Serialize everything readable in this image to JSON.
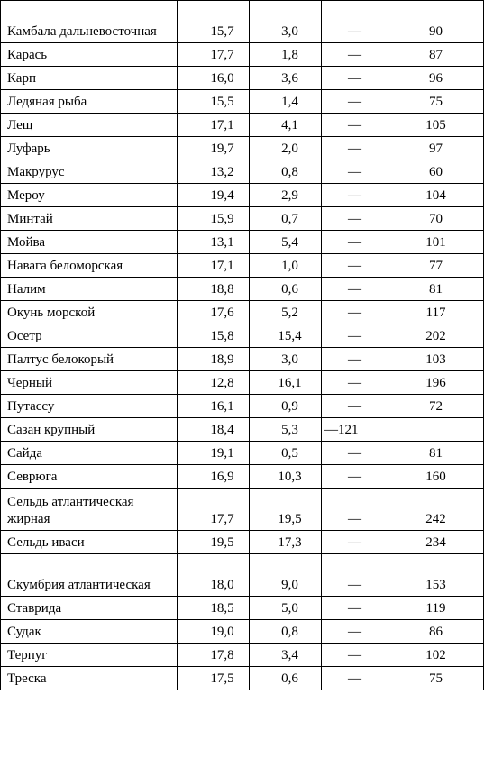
{
  "table": {
    "rows": [
      {
        "name": "Камбала дальневосточная",
        "protein": "15,7",
        "fat": "3,0",
        "carbs": "—",
        "kcal": "90",
        "tall": true
      },
      {
        "name": "Карась",
        "protein": "17,7",
        "fat": "1,8",
        "carbs": "—",
        "kcal": "87"
      },
      {
        "name": "Карп",
        "protein": "16,0",
        "fat": "3,6",
        "carbs": "—",
        "kcal": "96"
      },
      {
        "name": "Ледяная рыба",
        "protein": "15,5",
        "fat": "1,4",
        "carbs": "—",
        "kcal": "75"
      },
      {
        "name": "Лещ",
        "protein": "17,1",
        "fat": "4,1",
        "carbs": "—",
        "kcal": "105"
      },
      {
        "name": "Луфарь",
        "protein": "19,7",
        "fat": "2,0",
        "carbs": "—",
        "kcal": "97"
      },
      {
        "name": "Макрурус",
        "protein": "13,2",
        "fat": "0,8",
        "carbs": "—",
        "kcal": "60"
      },
      {
        "name": "Мероу",
        "protein": "19,4",
        "fat": "2,9",
        "carbs": "—",
        "kcal": "104"
      },
      {
        "name": "Минтай",
        "protein": "15,9",
        "fat": "0,7",
        "carbs": "—",
        "kcal": "70"
      },
      {
        "name": "Мойва",
        "protein": "13,1",
        "fat": "5,4",
        "carbs": "—",
        "kcal": "101"
      },
      {
        "name": "Навага беломорская",
        "protein": "17,1",
        "fat": "1,0",
        "carbs": "—",
        "kcal": "77"
      },
      {
        "name": "Налим",
        "protein": "18,8",
        "fat": "0,6",
        "carbs": "—",
        "kcal": "81"
      },
      {
        "name": "Окунь морской",
        "protein": "17,6",
        "fat": "5,2",
        "carbs": "—",
        "kcal": "117"
      },
      {
        "name": "Осетр",
        "protein": "15,8",
        "fat": "15,4",
        "carbs": "—",
        "kcal": "202"
      },
      {
        "name": "Палтус белокорый",
        "protein": "18,9",
        "fat": "3,0",
        "carbs": "—",
        "kcal": "103"
      },
      {
        "name": "Черный",
        "protein": "12,8",
        "fat": "16,1",
        "carbs": "—",
        "kcal": "196"
      },
      {
        "name": "Путассу",
        "protein": "16,1",
        "fat": "0,9",
        "carbs": "—",
        "kcal": "72"
      },
      {
        "name": "Сазан крупный",
        "protein": "18,4",
        "fat": "5,3",
        "carbs": "—121",
        "kcal": "",
        "shifted": true
      },
      {
        "name": "Сайда",
        "protein": "19,1",
        "fat": "0,5",
        "carbs": "—",
        "kcal": "81"
      },
      {
        "name": "Севрюга",
        "protein": "16,9",
        "fat": "10,3",
        "carbs": "—",
        "kcal": "160"
      },
      {
        "name": "Сельдь атлантическая жирная",
        "protein": "17,7",
        "fat": "19,5",
        "carbs": "—",
        "kcal": "242",
        "tall": true
      },
      {
        "name": "Сельдь иваси",
        "protein": "19,5",
        "fat": "17,3",
        "carbs": "—",
        "kcal": "234"
      },
      {
        "name": "Скумбрия атлантическая",
        "protein": "18,0",
        "fat": "9,0",
        "carbs": "—",
        "kcal": "153",
        "tall": true
      },
      {
        "name": "Ставрида",
        "protein": "18,5",
        "fat": "5,0",
        "carbs": "—",
        "kcal": "119"
      },
      {
        "name": "Судак",
        "protein": "19,0",
        "fat": "0,8",
        "carbs": "—",
        "kcal": "86"
      },
      {
        "name": "Терпуг",
        "protein": "17,8",
        "fat": "3,4",
        "carbs": "—",
        "kcal": "102"
      },
      {
        "name": "Треска",
        "protein": "17,5",
        "fat": "0,6",
        "carbs": "—",
        "kcal": "75"
      }
    ]
  }
}
